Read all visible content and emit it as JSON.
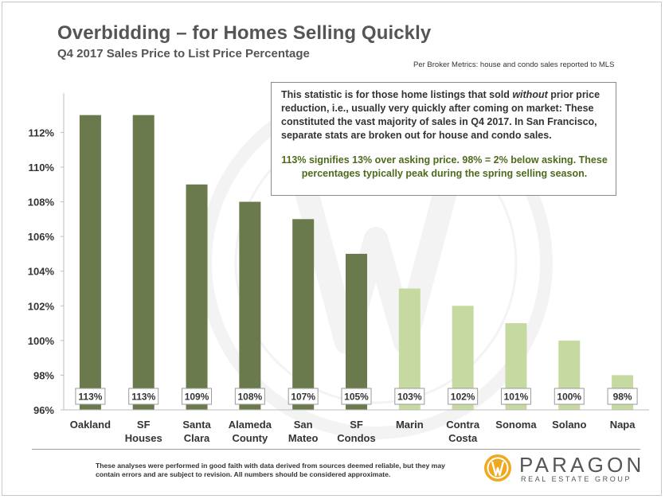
{
  "title": "Overbidding – for Homes Selling Quickly",
  "subtitle": "Q4 2017 Sales Price to List Price Percentage",
  "source_note": "Per Broker Metrics: house and condo sales reported to MLS",
  "note": {
    "paragraph1_pre": "This statistic is for those home listings that sold ",
    "paragraph1_em": "without",
    "paragraph1_post": " prior price reduction, i.e., usually very quickly after coming on market: These constituted the vast majority of sales in Q4 2017. In San Francisco, separate stats are broken out for house and condo sales.",
    "paragraph2": "113% signifies 13% over asking price. 98% = 2% below asking. These percentages typically peak during the spring selling season."
  },
  "disclaimer": "These analyses were performed in good faith with data derived from sources deemed reliable, but they may contain errors and are subject to revision.  All numbers should be considered approximate.",
  "logo": {
    "name": "PARAGON",
    "tagline": "REAL ESTATE GROUP"
  },
  "colors": {
    "dark_bar": "#6b7a4c",
    "light_bar": "#c6d9a0",
    "logo_accent": "#f0a81d"
  },
  "chart_data": {
    "type": "bar",
    "title": "Overbidding – for Homes Selling Quickly",
    "subtitle": "Q4 2017 Sales Price to List Price Percentage",
    "categories": [
      [
        "Oakland"
      ],
      [
        "SF",
        "Houses"
      ],
      [
        "Santa",
        "Clara"
      ],
      [
        "Alameda",
        "County"
      ],
      [
        "San",
        "Mateo"
      ],
      [
        "SF",
        "Condos"
      ],
      [
        "Marin"
      ],
      [
        "Contra",
        "Costa"
      ],
      [
        "Sonoma"
      ],
      [
        "Solano"
      ],
      [
        "Napa"
      ]
    ],
    "values": [
      113,
      113,
      109,
      108,
      107,
      105,
      103,
      102,
      101,
      100,
      98
    ],
    "data_labels": [
      "113%",
      "113%",
      "109%",
      "108%",
      "107%",
      "105%",
      "103%",
      "102%",
      "101%",
      "100%",
      "98%"
    ],
    "bar_shade": [
      "dark",
      "dark",
      "dark",
      "dark",
      "dark",
      "dark",
      "light",
      "light",
      "light",
      "light",
      "light"
    ],
    "yticks": [
      96,
      98,
      100,
      102,
      104,
      106,
      108,
      110,
      112
    ],
    "ytick_labels": [
      "96%",
      "98%",
      "100%",
      "102%",
      "104%",
      "106%",
      "108%",
      "110%",
      "112%"
    ],
    "ylim": [
      96,
      113.9
    ],
    "grid": false,
    "legend": "none"
  }
}
